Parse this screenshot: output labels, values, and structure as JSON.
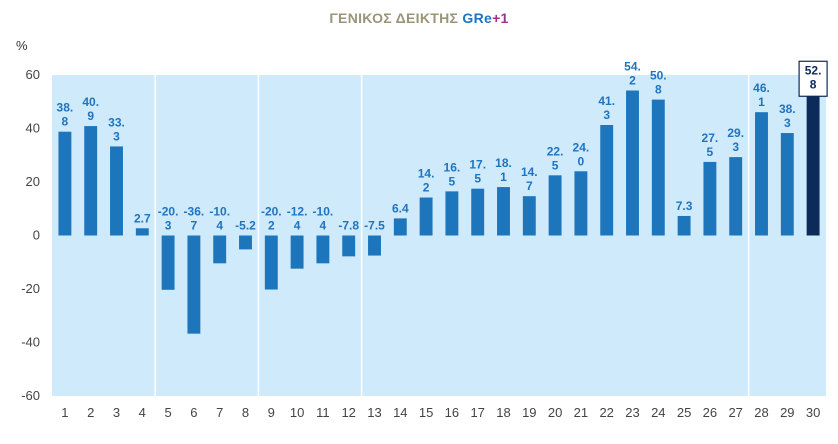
{
  "title": {
    "main": "ΓΕΝΙΚΟΣ ΔΕΙΚΤΗΣ ",
    "gr": "GRe",
    "plus": "+1"
  },
  "colors": {
    "plot_bg": "#cfeafb",
    "bar": "#1d75bc",
    "bar_highlight": "#0c2a5a",
    "label": "#1f74c0",
    "title_main": "#9b9478",
    "title_plus": "#a0308a",
    "separator": "#ffffff"
  },
  "chart_data": {
    "type": "bar",
    "ylabel": "%",
    "ylim": [
      -60,
      60
    ],
    "yticks": [
      60,
      40,
      20,
      0,
      -20,
      -40,
      -60
    ],
    "categories": [
      "1",
      "2",
      "3",
      "4",
      "5",
      "6",
      "7",
      "8",
      "9",
      "10",
      "11",
      "12",
      "13",
      "14",
      "15",
      "16",
      "17",
      "18",
      "19",
      "20",
      "21",
      "22",
      "23",
      "24",
      "25",
      "26",
      "27",
      "28",
      "29",
      "30"
    ],
    "values": [
      38.8,
      40.9,
      33.3,
      2.7,
      -20.3,
      -36.7,
      -10.4,
      -5.2,
      -20.2,
      -12.4,
      -10.4,
      -7.8,
      -7.5,
      6.4,
      14.2,
      16.5,
      17.5,
      18.1,
      14.7,
      22.5,
      24.0,
      41.3,
      54.2,
      50.8,
      7.3,
      27.5,
      29.3,
      46.1,
      38.3,
      52.8
    ],
    "labels": [
      [
        "38.",
        "8"
      ],
      [
        "40.",
        "9"
      ],
      [
        "33.",
        "3"
      ],
      [
        "2.7"
      ],
      [
        "-20.",
        "3"
      ],
      [
        "-36.",
        "7"
      ],
      [
        "-10.",
        "4"
      ],
      [
        "-5.2"
      ],
      [
        "-20.",
        "2"
      ],
      [
        "-12.",
        "4"
      ],
      [
        "-10.",
        "4"
      ],
      [
        "-7.8"
      ],
      [
        "-7.5"
      ],
      [
        "6.4"
      ],
      [
        "14.",
        "2"
      ],
      [
        "16.",
        "5"
      ],
      [
        "17.",
        "5"
      ],
      [
        "18.",
        "1"
      ],
      [
        "14.",
        "7"
      ],
      [
        "22.",
        "5"
      ],
      [
        "24.",
        "0"
      ],
      [
        "41.",
        "3"
      ],
      [
        "54.",
        "2"
      ],
      [
        "50.",
        "8"
      ],
      [
        "7.3"
      ],
      [
        "27.",
        "5"
      ],
      [
        "29.",
        "3"
      ],
      [
        "46.",
        "1"
      ],
      [
        "38.",
        "3"
      ],
      [
        "52.",
        "8"
      ]
    ],
    "highlight_index": 29,
    "separators_after": [
      3,
      7,
      11,
      26
    ],
    "grid": false,
    "legend": "none"
  }
}
